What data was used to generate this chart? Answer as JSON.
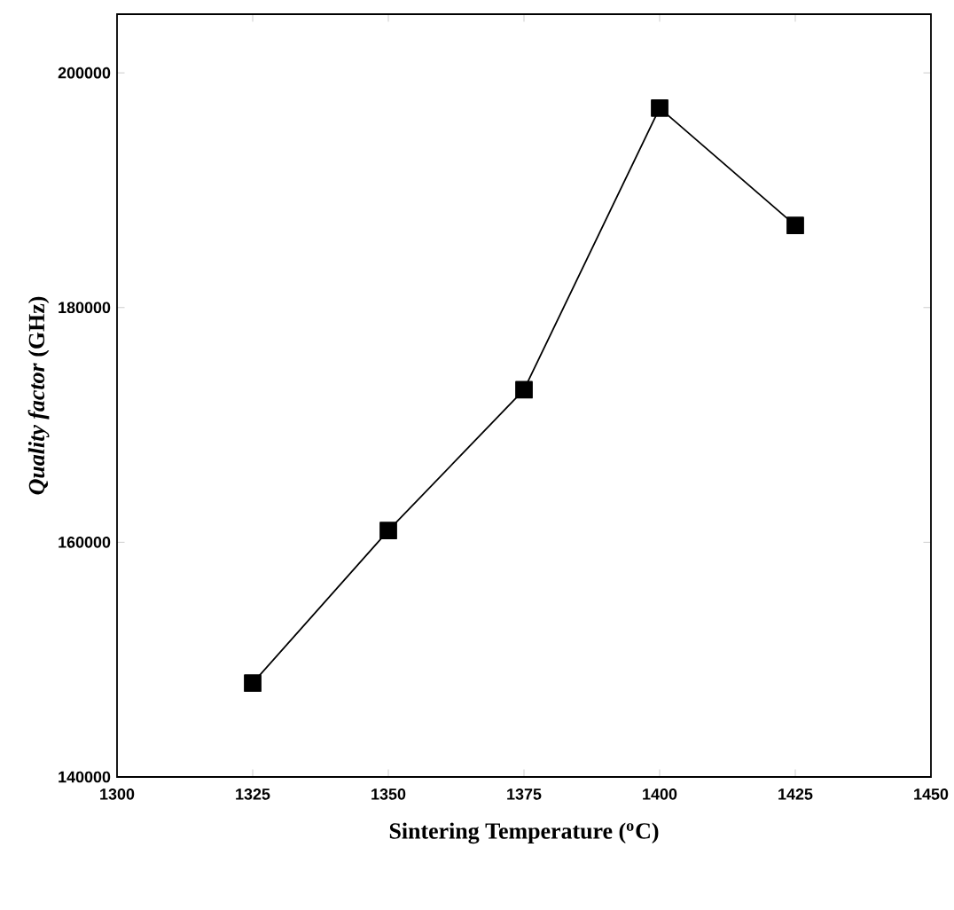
{
  "chart_data": {
    "type": "line",
    "xlabel": "Sintering Temperature ($^{o}$C)",
    "ylabel": "*Quality factor* (GHz)",
    "x": [
      1325,
      1350,
      1375,
      1400,
      1425
    ],
    "values": [
      148000,
      161000,
      173000,
      197000,
      187000
    ],
    "color": "#000000",
    "marker": "square",
    "line_style": "solid",
    "xlim": [
      1300,
      1450
    ],
    "xticks": [
      1300,
      1325,
      1350,
      1375,
      1400,
      1425,
      1450
    ],
    "ylim": [
      140000,
      205000
    ],
    "yticks": [
      140000,
      160000,
      180000,
      200000
    ]
  }
}
